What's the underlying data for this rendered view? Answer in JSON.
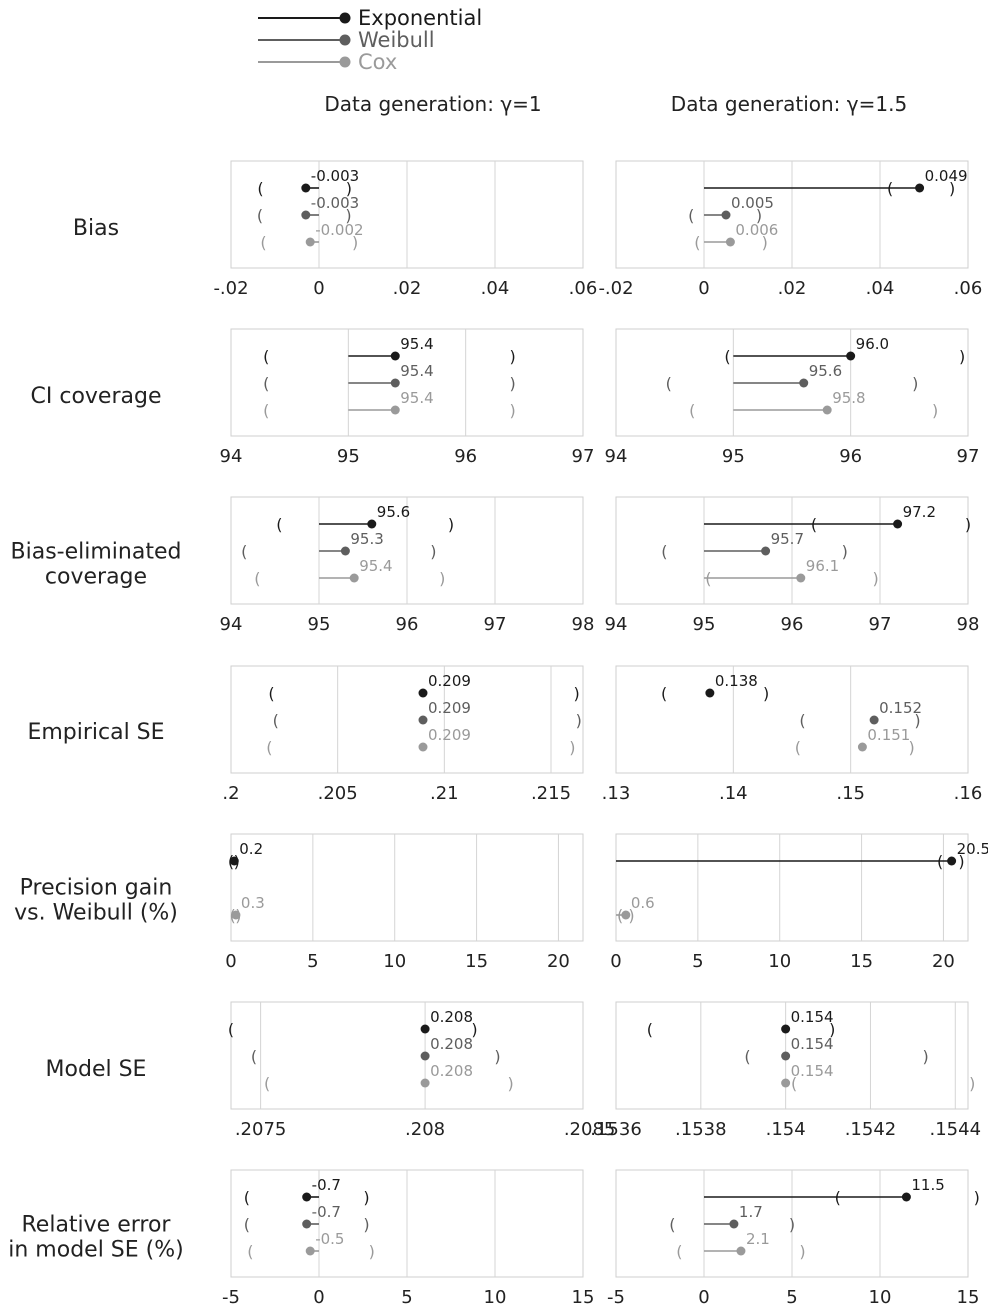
{
  "legend": [
    {
      "name": "Exponential",
      "color": "#1a1a1a"
    },
    {
      "name": "Weibull",
      "color": "#5e5e5e"
    },
    {
      "name": "Cox",
      "color": "#9a9a9a"
    }
  ],
  "columns": [
    "Data generation: γ=1",
    "Data generation: γ=1.5"
  ],
  "chart_data": {
    "type": "forest-plot",
    "series_names": [
      "Exponential",
      "Weibull",
      "Cox"
    ],
    "panels": [
      {
        "label": "Bias",
        "cols": [
          {
            "ticks": [
              -0.02,
              0,
              0.02,
              0.04,
              0.06
            ],
            "tick_labels": [
              "-.02",
              "0",
              ".02",
              ".04",
              ".06"
            ],
            "ref": 0,
            "xlim": [
              -0.02,
              0.06
            ],
            "points": [
              {
                "series": "Exponential",
                "value": -0.003,
                "ci": [
                  -0.0133,
                  0.0068
                ],
                "label": "-0.003"
              },
              {
                "series": "Weibull",
                "value": -0.003,
                "ci": [
                  -0.0134,
                  0.0067
                ],
                "label": "-0.003"
              },
              {
                "series": "Cox",
                "value": -0.002,
                "ci": [
                  -0.0126,
                  0.0082
                ],
                "label": "-0.002"
              }
            ]
          },
          {
            "ticks": [
              -0.02,
              0,
              0.02,
              0.04,
              0.06
            ],
            "tick_labels": [
              "-.02",
              "0",
              ".02",
              ".04",
              ".06"
            ],
            "ref": 0,
            "xlim": [
              -0.02,
              0.06
            ],
            "points": [
              {
                "series": "Exponential",
                "value": 0.049,
                "ci": [
                  0.0423,
                  0.0564
                ],
                "label": "0.049"
              },
              {
                "series": "Weibull",
                "value": 0.005,
                "ci": [
                  -0.0029,
                  0.0125
                ],
                "label": "0.005"
              },
              {
                "series": "Cox",
                "value": 0.006,
                "ci": [
                  -0.0015,
                  0.0138
                ],
                "label": "0.006"
              }
            ]
          }
        ]
      },
      {
        "label": "CI coverage",
        "cols": [
          {
            "ticks": [
              94,
              95,
              96,
              97
            ],
            "tick_labels": [
              "94",
              "95",
              "96",
              "97"
            ],
            "ref": 95,
            "xlim": [
              94,
              97
            ],
            "points": [
              {
                "series": "Exponential",
                "value": 95.4,
                "ci": [
                  94.3,
                  96.4
                ],
                "label": "95.4"
              },
              {
                "series": "Weibull",
                "value": 95.4,
                "ci": [
                  94.3,
                  96.4
                ],
                "label": "95.4"
              },
              {
                "series": "Cox",
                "value": 95.4,
                "ci": [
                  94.3,
                  96.4
                ],
                "label": "95.4"
              }
            ]
          },
          {
            "ticks": [
              94,
              95,
              96,
              97
            ],
            "tick_labels": [
              "94",
              "95",
              "96",
              "97"
            ],
            "ref": 95,
            "xlim": [
              94,
              97
            ],
            "points": [
              {
                "series": "Exponential",
                "value": 96.0,
                "ci": [
                  94.95,
                  96.95
                ],
                "label": "96.0"
              },
              {
                "series": "Weibull",
                "value": 95.6,
                "ci": [
                  94.45,
                  96.55
                ],
                "label": "95.6"
              },
              {
                "series": "Cox",
                "value": 95.8,
                "ci": [
                  94.65,
                  96.72
                ],
                "label": "95.8"
              }
            ]
          }
        ]
      },
      {
        "label": "Bias-eliminated\ncoverage",
        "cols": [
          {
            "ticks": [
              94,
              95,
              96,
              97,
              98
            ],
            "tick_labels": [
              "94",
              "95",
              "96",
              "97",
              "98"
            ],
            "ref": 95,
            "xlim": [
              94,
              98
            ],
            "points": [
              {
                "series": "Exponential",
                "value": 95.6,
                "ci": [
                  94.55,
                  96.5
                ],
                "label": "95.6"
              },
              {
                "series": "Weibull",
                "value": 95.3,
                "ci": [
                  94.15,
                  96.3
                ],
                "label": "95.3"
              },
              {
                "series": "Cox",
                "value": 95.4,
                "ci": [
                  94.3,
                  96.4
                ],
                "label": "95.4"
              }
            ]
          },
          {
            "ticks": [
              94,
              95,
              96,
              97,
              98
            ],
            "tick_labels": [
              "94",
              "95",
              "96",
              "97",
              "98"
            ],
            "ref": 95,
            "xlim": [
              94,
              98
            ],
            "points": [
              {
                "series": "Exponential",
                "value": 97.2,
                "ci": [
                  96.25,
                  98.0
                ],
                "label": "97.2"
              },
              {
                "series": "Weibull",
                "value": 95.7,
                "ci": [
                  94.55,
                  96.6
                ],
                "label": "95.7"
              },
              {
                "series": "Cox",
                "value": 96.1,
                "ci": [
                  95.05,
                  96.95
                ],
                "label": "96.1"
              }
            ]
          }
        ]
      },
      {
        "label": "Empirical SE",
        "cols": [
          {
            "ticks": [
              0.2,
              0.205,
              0.21,
              0.215
            ],
            "tick_labels": [
              ".2",
              ".205",
              ".21",
              ".215"
            ],
            "ref": null,
            "xlim": [
              0.2,
              0.2165
            ],
            "points": [
              {
                "series": "Exponential",
                "value": 0.209,
                "ci": [
                  0.2019,
                  0.2162
                ],
                "label": "0.209"
              },
              {
                "series": "Weibull",
                "value": 0.209,
                "ci": [
                  0.2021,
                  0.2163
                ],
                "label": "0.209"
              },
              {
                "series": "Cox",
                "value": 0.209,
                "ci": [
                  0.2018,
                  0.216
                ],
                "label": "0.209"
              }
            ]
          },
          {
            "ticks": [
              0.13,
              0.14,
              0.15,
              0.16
            ],
            "tick_labels": [
              ".13",
              ".14",
              ".15",
              ".16"
            ],
            "ref": null,
            "xlim": [
              0.13,
              0.16
            ],
            "points": [
              {
                "series": "Exponential",
                "value": 0.138,
                "ci": [
                  0.1341,
                  0.1428
                ],
                "label": "0.138"
              },
              {
                "series": "Weibull",
                "value": 0.152,
                "ci": [
                  0.1459,
                  0.1557
                ],
                "label": "0.152"
              },
              {
                "series": "Cox",
                "value": 0.151,
                "ci": [
                  0.1455,
                  0.1552
                ],
                "label": "0.151"
              }
            ]
          }
        ]
      },
      {
        "label": "Precision gain\nvs. Weibull (%)",
        "cols": [
          {
            "ticks": [
              0,
              5,
              10,
              15,
              20
            ],
            "tick_labels": [
              "0",
              "5",
              "10",
              "15",
              "20"
            ],
            "ref": 0,
            "xlim": [
              0,
              21.5
            ],
            "points": [
              {
                "series": "Exponential",
                "value": 0.2,
                "ci": [
                  0.0,
                  0.35
                ],
                "label": "0.2"
              },
              {
                "series": "Weibull",
                "value": null,
                "ci": null,
                "label": ""
              },
              {
                "series": "Cox",
                "value": 0.3,
                "ci": [
                  0.1,
                  0.45
                ],
                "label": "0.3"
              }
            ]
          },
          {
            "ticks": [
              0,
              5,
              10,
              15,
              20
            ],
            "tick_labels": [
              "0",
              "5",
              "10",
              "15",
              "20"
            ],
            "ref": 0,
            "xlim": [
              0,
              21.5
            ],
            "points": [
              {
                "series": "Exponential",
                "value": 20.5,
                "ci": [
                  19.8,
                  21.1
                ],
                "label": "20.5"
              },
              {
                "series": "Weibull",
                "value": null,
                "ci": null,
                "label": ""
              },
              {
                "series": "Cox",
                "value": 0.6,
                "ci": [
                  0.25,
                  0.95
                ],
                "label": "0.6"
              }
            ]
          }
        ]
      },
      {
        "label": "Model SE",
        "cols": [
          {
            "ticks": [
              0.2075,
              0.208,
              0.2085
            ],
            "tick_labels": [
              ".2075",
              ".208",
              ".2085"
            ],
            "ref": null,
            "xlim": [
              0.20741,
              0.20848
            ],
            "points": [
              {
                "series": "Exponential",
                "value": 0.208,
                "ci": [
                  0.20741,
                  0.20815
                ],
                "label": "0.208"
              },
              {
                "series": "Weibull",
                "value": 0.208,
                "ci": [
                  0.20748,
                  0.20822
                ],
                "label": "0.208"
              },
              {
                "series": "Cox",
                "value": 0.208,
                "ci": [
                  0.20752,
                  0.20826
                ],
                "label": "0.208"
              }
            ]
          },
          {
            "ticks": [
              0.1536,
              0.1538,
              0.154,
              0.1542,
              0.1544
            ],
            "tick_labels": [
              ".1536",
              ".1538",
              ".154",
              ".1542",
              ".1544"
            ],
            "ref": null,
            "xlim": [
              0.1536,
              0.15443
            ],
            "points": [
              {
                "series": "Exponential",
                "value": 0.154,
                "ci": [
                  0.15368,
                  0.15411
                ],
                "label": "0.154"
              },
              {
                "series": "Weibull",
                "value": 0.154,
                "ci": [
                  0.15391,
                  0.15433
                ],
                "label": "0.154"
              },
              {
                "series": "Cox",
                "value": 0.154,
                "ci": [
                  0.15402,
                  0.15444
                ],
                "label": "0.154"
              }
            ]
          }
        ]
      },
      {
        "label": "Relative error\nin model SE (%)",
        "cols": [
          {
            "ticks": [
              -5,
              0,
              5,
              10,
              15
            ],
            "tick_labels": [
              "-5",
              "0",
              "5",
              "10",
              "15"
            ],
            "ref": 0,
            "xlim": [
              -5,
              15
            ],
            "points": [
              {
                "series": "Exponential",
                "value": -0.7,
                "ci": [
                  -4.1,
                  2.7
                ],
                "label": "-0.7"
              },
              {
                "series": "Weibull",
                "value": -0.7,
                "ci": [
                  -4.1,
                  2.7
                ],
                "label": "-0.7"
              },
              {
                "series": "Cox",
                "value": -0.5,
                "ci": [
                  -3.9,
                  3.0
                ],
                "label": "-0.5"
              }
            ]
          },
          {
            "ticks": [
              -5,
              0,
              5,
              10,
              15
            ],
            "tick_labels": [
              "-5",
              "0",
              "5",
              "10",
              "15"
            ],
            "ref": 0,
            "xlim": [
              -5,
              15
            ],
            "points": [
              {
                "series": "Exponential",
                "value": 11.5,
                "ci": [
                  7.6,
                  15.5
                ],
                "label": "11.5"
              },
              {
                "series": "Weibull",
                "value": 1.7,
                "ci": [
                  -1.8,
                  5.0
                ],
                "label": "1.7"
              },
              {
                "series": "Cox",
                "value": 2.1,
                "ci": [
                  -1.4,
                  5.6
                ],
                "label": "2.1"
              }
            ]
          }
        ]
      }
    ]
  }
}
